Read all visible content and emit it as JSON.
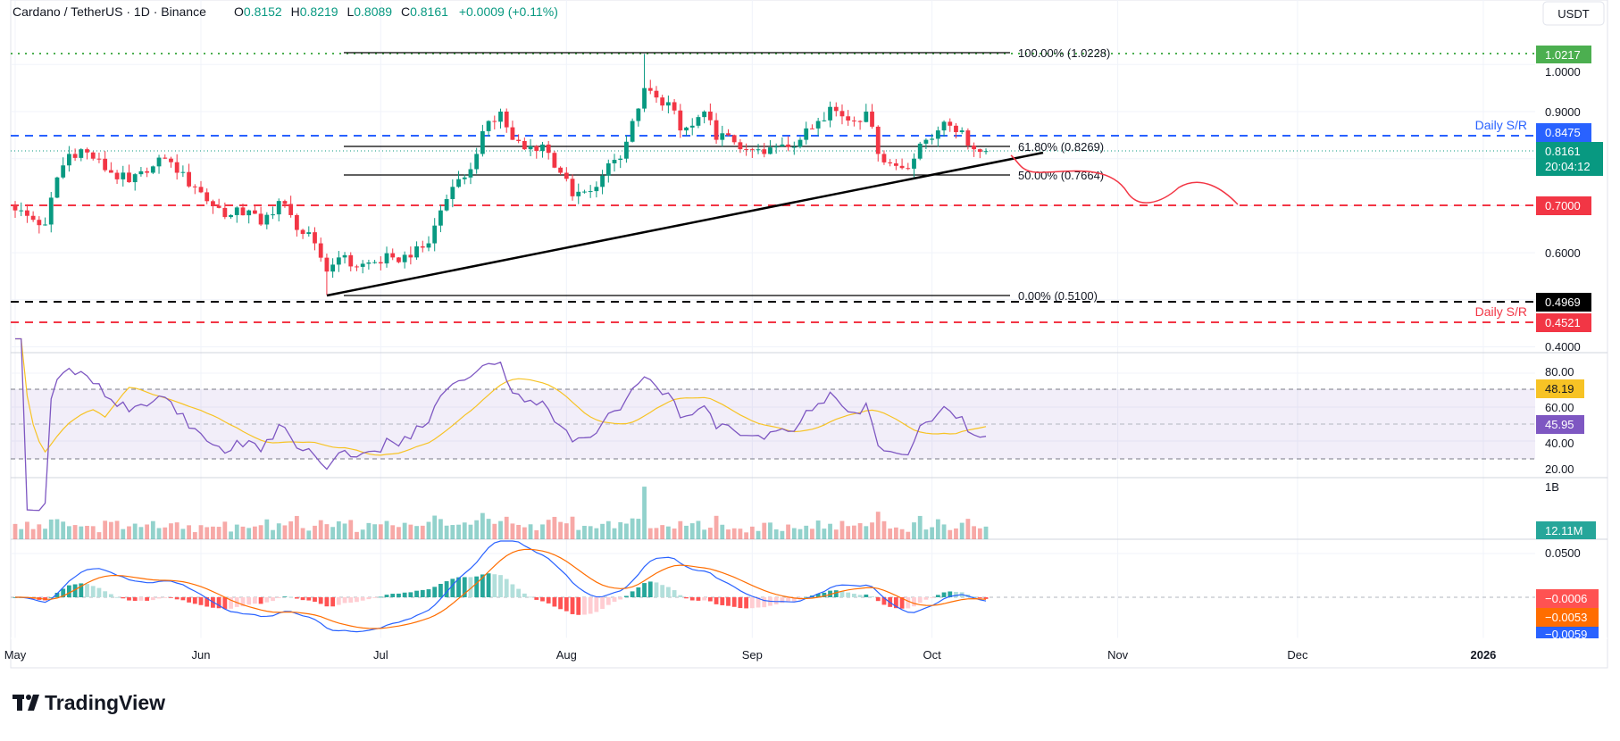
{
  "header": {
    "symbol": "Cardano / TetherUS · 1D · Binance",
    "o_label": "O",
    "o": "0.8152",
    "h_label": "H",
    "h": "0.8219",
    "l_label": "L",
    "l": "0.8089",
    "c_label": "C",
    "c": "0.8161",
    "change": "+0.0009 (+0.11%)"
  },
  "currency": "USDT",
  "brand": "TradingView",
  "colors": {
    "up": "#089981",
    "down": "#F23645",
    "blue": "#2962FF",
    "rsi": "#7E57C2",
    "rsi_ma": "#F7C325",
    "macd": "#2962FF",
    "signal": "#FF6D00",
    "green_line": "#4CAF50"
  },
  "price_axis": {
    "ticks": [
      "1.0000",
      "0.9000",
      "0.6000",
      "0.4000"
    ],
    "labels": {
      "high_level": "1.0217",
      "daily_sr_top": "0.8475",
      "last_price": "0.8161",
      "countdown": "20:04:12",
      "support_070": "0.7000",
      "black_level": "0.4969",
      "daily_sr_bottom": "0.4521"
    }
  },
  "annotations": {
    "fib_100": "100.00% (1.0228)",
    "fib_618": "61.80% (0.8269)",
    "fib_50": "50.00% (0.7664)",
    "fib_0": "0.00% (0.5100)",
    "daily_sr_top": "Daily S/R",
    "daily_sr_bottom": "Daily S/R"
  },
  "rsi": {
    "ticks": [
      "80.00",
      "60.00",
      "40.00",
      "20.00"
    ],
    "ma_value": "48.19",
    "value": "45.95"
  },
  "volume": {
    "axis_label": "1B",
    "value": "12.11M"
  },
  "macd": {
    "tick": "0.0500",
    "histogram": "−0.0006",
    "signal": "−0.0053",
    "macd": "−0.0059"
  },
  "time_axis": [
    "May",
    "Jun",
    "Jul",
    "Aug",
    "Sep",
    "Oct",
    "Nov",
    "Dec",
    "2026"
  ],
  "chart_data": {
    "type": "candlestick",
    "title": "Cardano / TetherUS · 1D · Binance",
    "ylim": [
      0.4,
      1.06
    ],
    "last_candle": {
      "date": "2025-10-10",
      "open": 0.8152,
      "high": 0.8219,
      "low": 0.8089,
      "close": 0.8161
    },
    "swing_high": {
      "date": "2025-08-14",
      "high": 1.0228
    },
    "swing_low": {
      "date": "2025-06-22",
      "low": 0.51
    },
    "horizontal_levels": [
      1.0217,
      0.8475,
      0.7,
      0.4969,
      0.4521
    ],
    "fibonacci": [
      {
        "level": "100.00%",
        "price": 1.0228
      },
      {
        "level": "61.80%",
        "price": 0.8269
      },
      {
        "level": "50.00%",
        "price": 0.7664
      },
      {
        "level": "0.00%",
        "price": 0.51
      }
    ],
    "close_keypoints": [
      [
        "2025-05-01",
        0.69
      ],
      [
        "2025-05-04",
        0.67
      ],
      [
        "2025-05-06",
        0.66
      ],
      [
        "2025-05-08",
        0.76
      ],
      [
        "2025-05-10",
        0.81
      ],
      [
        "2025-05-12",
        0.82
      ],
      [
        "2025-05-14",
        0.8
      ],
      [
        "2025-05-17",
        0.77
      ],
      [
        "2025-05-20",
        0.75
      ],
      [
        "2025-05-23",
        0.77
      ],
      [
        "2025-05-26",
        0.8
      ],
      [
        "2025-05-28",
        0.77
      ],
      [
        "2025-05-31",
        0.74
      ],
      [
        "2025-06-03",
        0.7
      ],
      [
        "2025-06-06",
        0.68
      ],
      [
        "2025-06-09",
        0.69
      ],
      [
        "2025-06-11",
        0.66
      ],
      [
        "2025-06-14",
        0.71
      ],
      [
        "2025-06-16",
        0.68
      ],
      [
        "2025-06-18",
        0.64
      ],
      [
        "2025-06-20",
        0.62
      ],
      [
        "2025-06-22",
        0.56
      ],
      [
        "2025-06-24",
        0.59
      ],
      [
        "2025-06-27",
        0.57
      ],
      [
        "2025-06-30",
        0.58
      ],
      [
        "2025-07-03",
        0.59
      ],
      [
        "2025-07-06",
        0.59
      ],
      [
        "2025-07-09",
        0.62
      ],
      [
        "2025-07-11",
        0.69
      ],
      [
        "2025-07-13",
        0.74
      ],
      [
        "2025-07-15",
        0.76
      ],
      [
        "2025-07-17",
        0.81
      ],
      [
        "2025-07-19",
        0.88
      ],
      [
        "2025-07-21",
        0.9
      ],
      [
        "2025-07-23",
        0.84
      ],
      [
        "2025-07-25",
        0.82
      ],
      [
        "2025-07-28",
        0.83
      ],
      [
        "2025-07-31",
        0.77
      ],
      [
        "2025-08-02",
        0.72
      ],
      [
        "2025-08-04",
        0.73
      ],
      [
        "2025-08-06",
        0.74
      ],
      [
        "2025-08-08",
        0.79
      ],
      [
        "2025-08-10",
        0.8
      ],
      [
        "2025-08-12",
        0.88
      ],
      [
        "2025-08-14",
        0.95
      ],
      [
        "2025-08-16",
        0.93
      ],
      [
        "2025-08-18",
        0.92
      ],
      [
        "2025-08-20",
        0.86
      ],
      [
        "2025-08-22",
        0.87
      ],
      [
        "2025-08-24",
        0.9
      ],
      [
        "2025-08-26",
        0.84
      ],
      [
        "2025-08-28",
        0.85
      ],
      [
        "2025-08-31",
        0.82
      ],
      [
        "2025-09-03",
        0.81
      ],
      [
        "2025-09-06",
        0.83
      ],
      [
        "2025-09-09",
        0.84
      ],
      [
        "2025-09-12",
        0.88
      ],
      [
        "2025-09-14",
        0.91
      ],
      [
        "2025-09-16",
        0.89
      ],
      [
        "2025-09-18",
        0.88
      ],
      [
        "2025-09-20",
        0.9
      ],
      [
        "2025-09-22",
        0.81
      ],
      [
        "2025-09-24",
        0.79
      ],
      [
        "2025-09-26",
        0.78
      ],
      [
        "2025-09-28",
        0.8
      ],
      [
        "2025-09-30",
        0.84
      ],
      [
        "2025-10-02",
        0.86
      ],
      [
        "2025-10-04",
        0.87
      ],
      [
        "2025-10-06",
        0.86
      ],
      [
        "2025-10-08",
        0.82
      ],
      [
        "2025-10-10",
        0.8161
      ]
    ]
  }
}
